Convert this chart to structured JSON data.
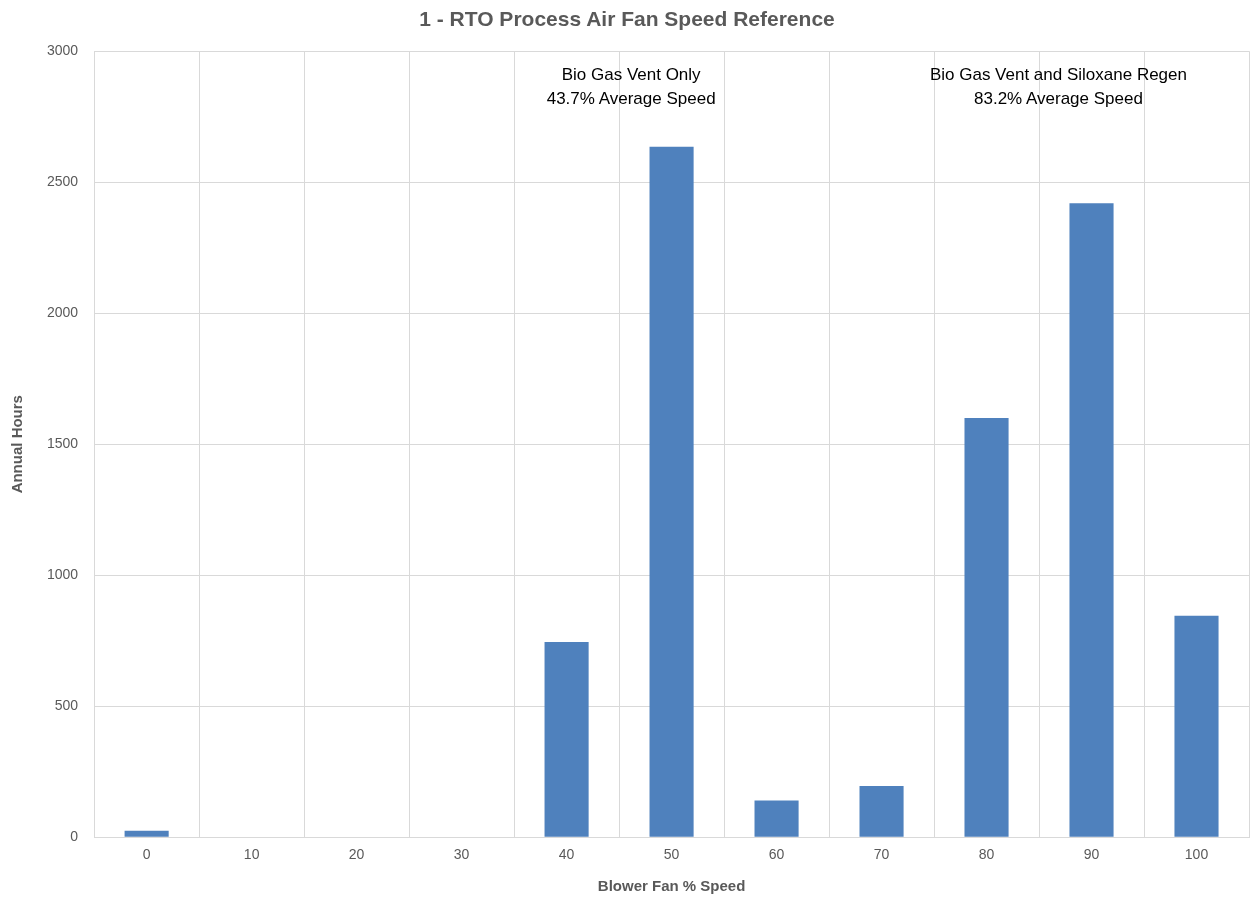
{
  "chart_data": {
    "type": "bar",
    "title": "1 - RTO Process Air Fan Speed Reference",
    "xlabel": "Blower Fan % Speed",
    "ylabel": "Annual Hours",
    "categories": [
      "0",
      "10",
      "20",
      "30",
      "40",
      "50",
      "60",
      "70",
      "80",
      "90",
      "100"
    ],
    "values": [
      25,
      0,
      0,
      0,
      745,
      2635,
      140,
      195,
      1600,
      2420,
      845
    ],
    "color": "#4f81bd",
    "ylim": [
      0,
      3000
    ],
    "yticks": [
      0,
      500,
      1000,
      1500,
      2000,
      2500,
      3000
    ],
    "grid": true,
    "legend": false,
    "annotations": [
      "Bio Gas Vent Only\n43.7% Average Speed",
      "Bio Gas Vent and Siloxane Regen\n83.2% Average Speed"
    ]
  }
}
